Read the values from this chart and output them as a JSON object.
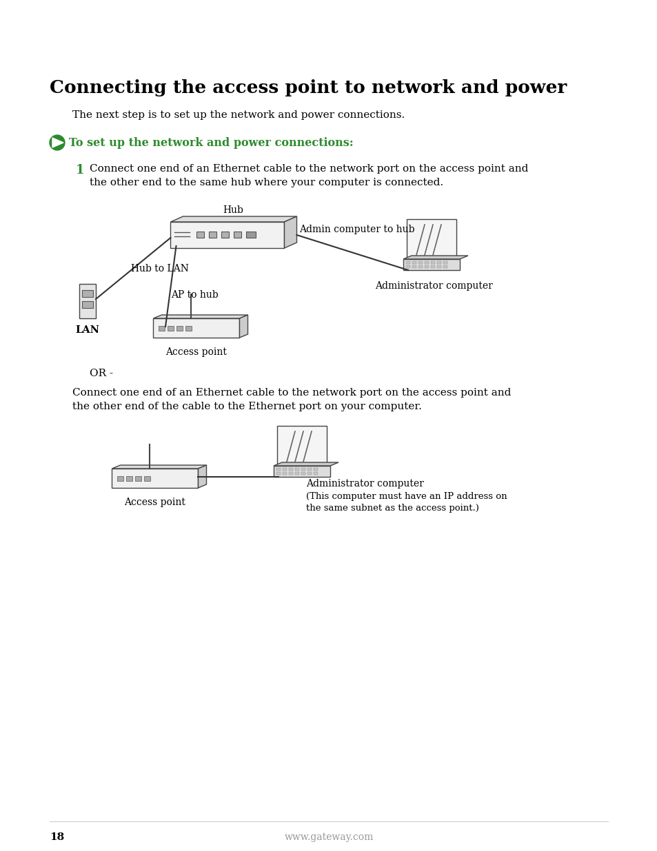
{
  "title": "Connecting the access point to network and power",
  "subtitle": "The next step is to set up the network and power connections.",
  "green_heading": "To set up the network and power connections:",
  "step1_num": "1",
  "step1_line1": "Connect one end of an Ethernet cable to the network port on the access point and",
  "step1_line2": "the other end to the same hub where your computer is connected.",
  "or_text": "OR -",
  "step2_line1": "Connect one end of an Ethernet cable to the network port on the access point and",
  "step2_line2": "the other end of the cable to the Ethernet port on your computer.",
  "label_hub": "Hub",
  "label_admin_to_hub": "Admin computer to hub",
  "label_admin_computer": "Administrator computer",
  "label_hub_to_lan": "Hub to LAN",
  "label_ap_to_hub": "AP to hub",
  "label_lan": "LAN",
  "label_access_point1": "Access point",
  "label_access_point2": "Access point",
  "label_admin_computer2": "Administrator computer",
  "label_admin_note1": "(This computer must have an IP address on",
  "label_admin_note2": "the same subnet as the access point.)",
  "footer_page": "18",
  "footer_url": "www.gateway.com",
  "bg_color": "#ffffff",
  "text_color": "#000000",
  "green_color": "#2d8a2d",
  "gray_color": "#999999"
}
